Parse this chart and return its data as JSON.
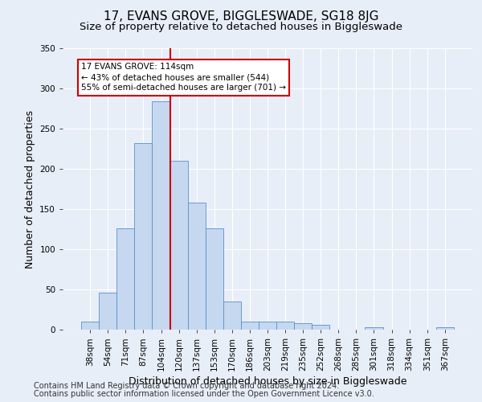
{
  "title": "17, EVANS GROVE, BIGGLESWADE, SG18 8JG",
  "subtitle": "Size of property relative to detached houses in Biggleswade",
  "xlabel": "Distribution of detached houses by size in Biggleswade",
  "ylabel": "Number of detached properties",
  "footnote1": "Contains HM Land Registry data © Crown copyright and database right 2024.",
  "footnote2": "Contains public sector information licensed under the Open Government Licence v3.0.",
  "categories": [
    "38sqm",
    "54sqm",
    "71sqm",
    "87sqm",
    "104sqm",
    "120sqm",
    "137sqm",
    "153sqm",
    "170sqm",
    "186sqm",
    "203sqm",
    "219sqm",
    "235sqm",
    "252sqm",
    "268sqm",
    "285sqm",
    "301sqm",
    "318sqm",
    "334sqm",
    "351sqm",
    "367sqm"
  ],
  "values": [
    10,
    46,
    126,
    232,
    284,
    210,
    158,
    126,
    35,
    10,
    10,
    10,
    8,
    6,
    0,
    0,
    3,
    0,
    0,
    0,
    3
  ],
  "bar_color": "#c5d8f0",
  "bar_edge_color": "#5b8fc9",
  "vline_color": "#cc0000",
  "vline_x_index": 4.5,
  "annotation_text": "17 EVANS GROVE: 114sqm\n← 43% of detached houses are smaller (544)\n55% of semi-detached houses are larger (701) →",
  "annotation_box_color": "white",
  "annotation_box_edge": "#cc0000",
  "ylim": [
    0,
    350
  ],
  "yticks": [
    0,
    50,
    100,
    150,
    200,
    250,
    300,
    350
  ],
  "background_color": "#e8eef8",
  "grid_color": "white",
  "title_fontsize": 11,
  "subtitle_fontsize": 9.5,
  "xlabel_fontsize": 9,
  "ylabel_fontsize": 9,
  "tick_fontsize": 7.5,
  "footnote_fontsize": 7
}
